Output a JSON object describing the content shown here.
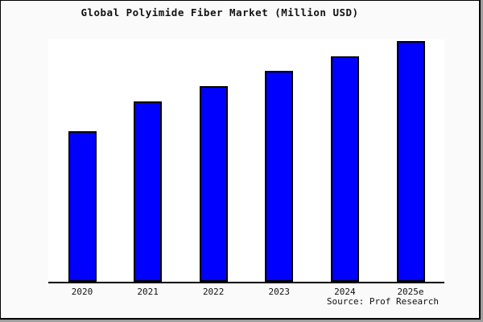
{
  "title": "Global Polyimide Fiber Market (Million USD)",
  "source": "Source: Prof Research",
  "colors": {
    "background": "#fafafa",
    "plot_background": "#ffffff",
    "bar_fill": "#0000ff",
    "bar_edge": "#000000",
    "axis": "#000000",
    "frame": "#000000",
    "shadow": "#9e9e9e",
    "text": "#111111"
  },
  "chart_data": {
    "type": "bar",
    "title": "Global Polyimide Fiber Market (Million USD)",
    "categories": [
      "2020",
      "2021",
      "2022",
      "2023",
      "2024",
      "2025e"
    ],
    "values": [
      100,
      120,
      130,
      140,
      150,
      160
    ],
    "values_estimated": true,
    "xlabel": "",
    "ylabel": "",
    "ylim": [
      0,
      161
    ],
    "grid": false,
    "legend": false,
    "y_axis_labels_visible": false,
    "annotation": "Source: Prof Research"
  }
}
